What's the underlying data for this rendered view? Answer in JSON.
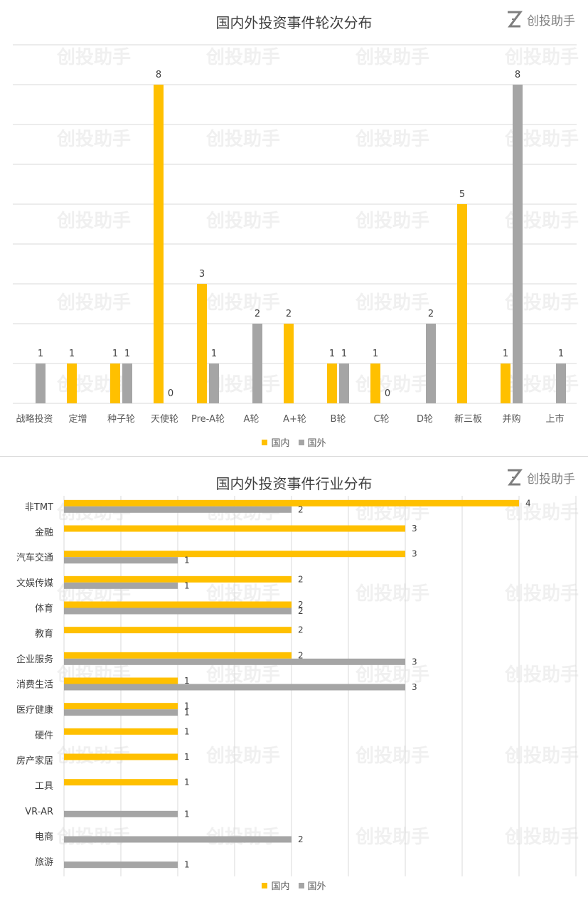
{
  "brand": {
    "name": "创投助手",
    "icon": "z-logo-icon"
  },
  "colors": {
    "domestic": "#FFC000",
    "foreign": "#A5A5A5",
    "grid": "#D9D9D9",
    "label": "#404040"
  },
  "chart_data": [
    {
      "type": "bar",
      "title": "国内外投资事件轮次分布",
      "categories": [
        "战略投资",
        "定增",
        "种子轮",
        "天使轮",
        "Pre-A轮",
        "A轮",
        "A+轮",
        "B轮",
        "C轮",
        "D轮",
        "新三板",
        "并购",
        "上市"
      ],
      "series": [
        {
          "name": "国内",
          "values": [
            null,
            1,
            1,
            8,
            3,
            null,
            2,
            1,
            1,
            null,
            5,
            1,
            null
          ]
        },
        {
          "name": "国外",
          "values": [
            1,
            null,
            1,
            0,
            1,
            2,
            null,
            1,
            0,
            2,
            null,
            8,
            1
          ]
        }
      ],
      "ylim": [
        0,
        9
      ],
      "grid": true,
      "legend": "bottom"
    },
    {
      "type": "bar",
      "orientation": "horizontal",
      "title": "国内外投资事件行业分布",
      "categories": [
        "非TMT",
        "金融",
        "汽车交通",
        "文娱传媒",
        "体育",
        "教育",
        "企业服务",
        "消费生活",
        "医疗健康",
        "硬件",
        "房产家居",
        "工具",
        "VR-AR",
        "电商",
        "旅游"
      ],
      "series": [
        {
          "name": "国内",
          "values": [
            4,
            3,
            3,
            2,
            2,
            2,
            2,
            1,
            1,
            1,
            1,
            1,
            null,
            null,
            null
          ]
        },
        {
          "name": "国外",
          "values": [
            2,
            null,
            1,
            1,
            2,
            null,
            3,
            3,
            1,
            null,
            null,
            null,
            1,
            2,
            1
          ]
        }
      ],
      "xlim": [
        0,
        4.5
      ],
      "grid": true,
      "legend": "bottom"
    }
  ]
}
